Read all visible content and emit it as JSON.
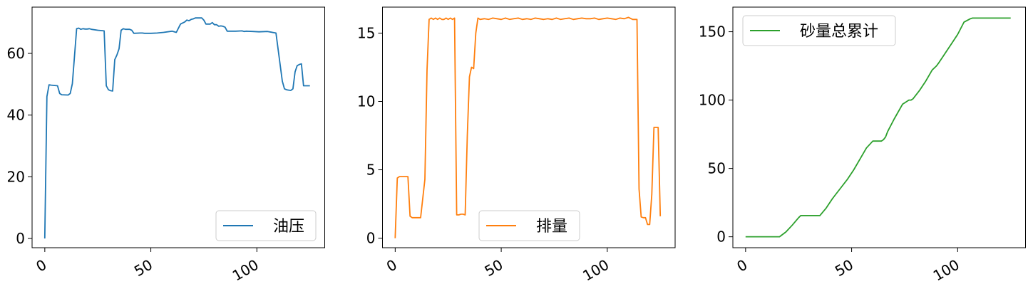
{
  "chart_data": [
    {
      "type": "line",
      "xlim": [
        -6,
        132
      ],
      "ylim": [
        -3,
        75
      ],
      "xticks": [
        0,
        50,
        100
      ],
      "xtick_labels": [
        "0",
        "50",
        "100"
      ],
      "yticks": [
        0,
        20,
        40,
        60
      ],
      "ytick_labels": [
        "0",
        "20",
        "40",
        "60"
      ],
      "legend_position": "lower-right",
      "series": [
        {
          "name": "油压",
          "color": "#1f77b4",
          "x": [
            0,
            1,
            2,
            3,
            6,
            7,
            8,
            11,
            12,
            13,
            15,
            16,
            17,
            18,
            19,
            20,
            21,
            22,
            25,
            28,
            29,
            30,
            31,
            32,
            33,
            34,
            35,
            36,
            37,
            38,
            39,
            40,
            41,
            42,
            45,
            46,
            47,
            50,
            53,
            56,
            60,
            62,
            64,
            66,
            67,
            68,
            69,
            70,
            71,
            73,
            74,
            75,
            76,
            78,
            79,
            80,
            81,
            82,
            83,
            84,
            85,
            86,
            87,
            88,
            90,
            93,
            94,
            95,
            98,
            101,
            105,
            109,
            112,
            113,
            114,
            115,
            116,
            117,
            118,
            119,
            120,
            121,
            122,
            123,
            124,
            125
          ],
          "values": [
            0,
            46,
            49.8,
            49.7,
            49.5,
            47,
            46.6,
            46.5,
            47,
            50.2,
            68,
            68.2,
            67.8,
            68,
            67.9,
            67.9,
            68,
            67.8,
            67.5,
            67.3,
            49.5,
            48.2,
            47.9,
            47.8,
            58,
            59.5,
            61.5,
            67.5,
            68,
            67.8,
            67.8,
            67.8,
            67.5,
            66.5,
            66.6,
            66.6,
            66.5,
            66.5,
            66.6,
            66.8,
            67.2,
            66.8,
            69.5,
            70.2,
            70.8,
            70.6,
            71,
            71.2,
            71.5,
            71.5,
            71.5,
            70.8,
            69.5,
            69.5,
            70,
            69.3,
            69.3,
            68.8,
            68.9,
            68.8,
            68.5,
            67.2,
            67.2,
            67.2,
            67.2,
            67.3,
            67.1,
            67.2,
            67.1,
            67.0,
            67.1,
            66.6,
            51,
            48.5,
            48.2,
            48.1,
            48.0,
            48.5,
            54,
            56,
            56.4,
            56.6,
            49.5,
            49.5,
            49.5,
            49.5
          ]
        }
      ]
    },
    {
      "type": "line",
      "xlim": [
        -6,
        132
      ],
      "ylim": [
        -0.7,
        16.9
      ],
      "xticks": [
        0,
        50,
        100
      ],
      "xtick_labels": [
        "0",
        "50",
        "100"
      ],
      "yticks": [
        0,
        5,
        10,
        15
      ],
      "ytick_labels": [
        "0",
        "5",
        "10",
        "15"
      ],
      "legend_position": "lower-center",
      "series": [
        {
          "name": "排量",
          "color": "#ff7f0e",
          "x": [
            0,
            1,
            2,
            4,
            6,
            7,
            8,
            9,
            12,
            14,
            15,
            16,
            17,
            18,
            19,
            20,
            21,
            22,
            23,
            24,
            25,
            26,
            27,
            28,
            29,
            30,
            31,
            32,
            33,
            34,
            35,
            36,
            37,
            38,
            39,
            40,
            42,
            44,
            46,
            48,
            50,
            52,
            54,
            56,
            58,
            60,
            62,
            64,
            66,
            68,
            70,
            72,
            74,
            76,
            78,
            80,
            82,
            84,
            86,
            88,
            90,
            92,
            94,
            96,
            98,
            100,
            102,
            104,
            106,
            108,
            110,
            112,
            114,
            115,
            116,
            117,
            118,
            119,
            120,
            121,
            122,
            123,
            124,
            125
          ],
          "values": [
            0,
            4.4,
            4.5,
            4.5,
            4.5,
            1.6,
            1.5,
            1.5,
            1.5,
            4.3,
            12.3,
            16,
            16.1,
            16,
            16.1,
            16,
            16.1,
            16,
            16,
            16.1,
            16,
            16.1,
            16,
            16.1,
            1.7,
            1.7,
            1.75,
            1.75,
            1.7,
            7.5,
            11.8,
            12.5,
            12.4,
            15,
            16.1,
            16,
            16.05,
            16,
            16.1,
            16.05,
            16,
            16.1,
            16,
            16.05,
            16.1,
            16,
            16.05,
            16,
            16.1,
            16.05,
            16,
            16.05,
            16,
            16.1,
            16,
            16.05,
            16.1,
            16,
            16.05,
            16.1,
            16.05,
            16.05,
            16.1,
            16,
            16.05,
            16.1,
            16.05,
            16,
            16.1,
            16.05,
            16.15,
            16,
            16,
            3.6,
            1.55,
            1.5,
            1.5,
            1,
            1,
            3.2,
            8.1,
            8.1,
            8.1,
            1.6
          ]
        }
      ]
    },
    {
      "type": "line",
      "xlim": [
        -6,
        132
      ],
      "ylim": [
        -8,
        168
      ],
      "xticks": [
        0,
        50,
        100
      ],
      "xtick_labels": [
        "0",
        "50",
        "100"
      ],
      "yticks": [
        0,
        50,
        100,
        150
      ],
      "ytick_labels": [
        "0",
        "50",
        "100",
        "150"
      ],
      "legend_position": "upper-left",
      "series": [
        {
          "name": "砂量总累计",
          "color": "#2ca02c",
          "x": [
            0,
            16,
            19,
            22,
            25,
            26,
            30,
            32,
            35,
            38,
            41,
            42,
            45,
            48,
            51,
            54,
            57,
            60,
            61,
            62,
            63,
            64,
            65,
            66,
            67,
            70,
            74,
            77,
            78,
            79,
            82,
            85,
            88,
            90,
            91,
            94,
            97,
            100,
            103,
            106,
            107,
            108,
            109,
            110,
            112,
            115,
            120,
            125
          ],
          "values": [
            0,
            0,
            3.5,
            8.5,
            14,
            15.5,
            15.5,
            15.5,
            15.5,
            21,
            28,
            30,
            36,
            42,
            49,
            57,
            65,
            70,
            70,
            70,
            70,
            70,
            71,
            73,
            77,
            86,
            97,
            100,
            100,
            101,
            107,
            114,
            122,
            125,
            127,
            134,
            141,
            148,
            157,
            159.5,
            160,
            160,
            160,
            160,
            160,
            160,
            160,
            160
          ]
        }
      ]
    }
  ]
}
